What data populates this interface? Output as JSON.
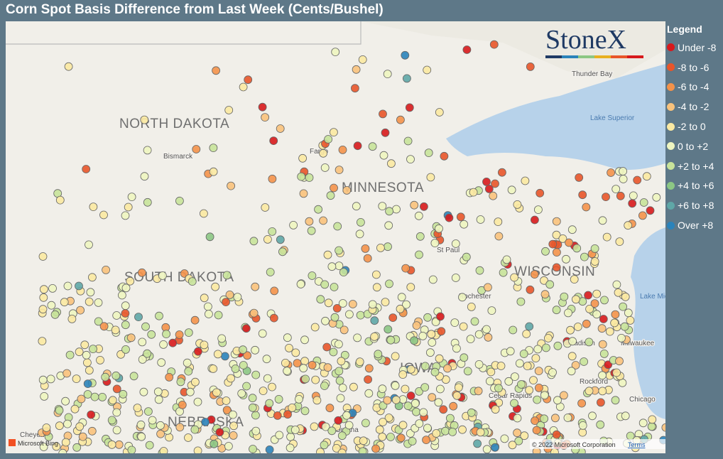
{
  "header": {
    "title": "Corn Spot Basis Difference from Last Week (Cents/Bushel)"
  },
  "legend": {
    "title": "Legend",
    "items": [
      {
        "label": "Under -8",
        "color": "#d7191c"
      },
      {
        "label": "-8 to -6",
        "color": "#e8552a"
      },
      {
        "label": "-6 to -4",
        "color": "#f4924a"
      },
      {
        "label": "-4 to -2",
        "color": "#f9c27c"
      },
      {
        "label": "-2 to 0",
        "color": "#fbe9a2"
      },
      {
        "label": "0 to +2",
        "color": "#eef5c0"
      },
      {
        "label": "+2 to +4",
        "color": "#c8e39a"
      },
      {
        "label": "+4 to +6",
        "color": "#8cc784"
      },
      {
        "label": "+6 to +8",
        "color": "#5fa7a7"
      },
      {
        "label": "Over +8",
        "color": "#2b83ba"
      }
    ]
  },
  "logo": "StoneX",
  "map": {
    "states": [
      "NORTH DAKOTA",
      "SOUTH DAKOTA",
      "MINNESOTA",
      "WISCONSIN",
      "NEBRASKA",
      "IOWA"
    ],
    "cities": [
      "Thunder Bay",
      "Lake Superior",
      "Bismarck",
      "Fargo",
      "St Paul",
      "Rochester",
      "Lake Michigan",
      "Madison",
      "Milwaukee",
      "Rockford",
      "Cedar Rapids",
      "Chicago",
      "Omaha",
      "Cheyenne"
    ]
  },
  "attribution": {
    "provider": "Microsoft Bing",
    "copyright": "© 2022 Microsoft Corporation",
    "terms": "Terms"
  }
}
